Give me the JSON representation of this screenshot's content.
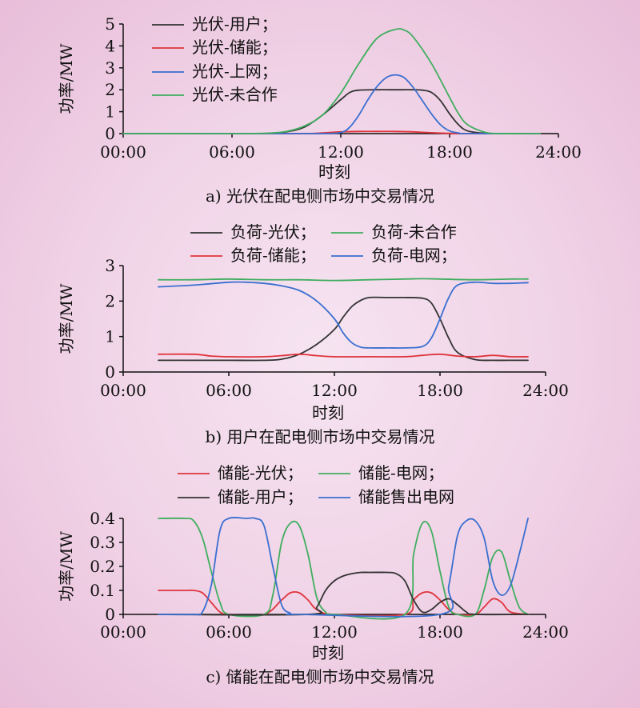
{
  "colors": {
    "black": "#333333",
    "red": "#e0343c",
    "blue": "#3a6fd0",
    "green": "#3fae5e"
  },
  "chart_data": [
    {
      "type": "line",
      "caption": "a) 光伏在配电侧市场中交易情况",
      "xlabel": "时刻",
      "ylabel": "功率/MW",
      "xlim": [
        0,
        24
      ],
      "ylim": [
        0,
        5
      ],
      "xticks": [
        0,
        6,
        12,
        18,
        24
      ],
      "xtick_labels": [
        "00:00",
        "06:00",
        "12:00",
        "18:00",
        "24:00"
      ],
      "yticks": [
        0,
        1,
        2,
        3,
        4,
        5
      ],
      "ytick_labels": [
        "0",
        "1",
        "2",
        "3",
        "4",
        "5"
      ],
      "legend": {
        "placement": "top-left",
        "order": [
          0,
          1,
          2,
          3
        ],
        "columns": 1
      },
      "series": [
        {
          "name": "光伏-用户；",
          "color": "black",
          "x": [
            0,
            6,
            8,
            9,
            10,
            11,
            12,
            12.5,
            13,
            14,
            15,
            16,
            16.5,
            17,
            17.5,
            18,
            18.5,
            19,
            20,
            21,
            22,
            23
          ],
          "y": [
            0,
            0,
            0.01,
            0.08,
            0.3,
            0.85,
            1.55,
            1.88,
            1.98,
            2,
            2,
            2,
            1.98,
            1.88,
            1.5,
            0.9,
            0.4,
            0.12,
            0.01,
            0,
            0,
            0
          ]
        },
        {
          "name": "光伏-储能；",
          "color": "red",
          "x": [
            0,
            8,
            10,
            11,
            12,
            13,
            14,
            15,
            16,
            17,
            18,
            19,
            23
          ],
          "y": [
            0,
            0,
            0,
            0.03,
            0.08,
            0.1,
            0.1,
            0.1,
            0.08,
            0.04,
            0.01,
            0,
            0
          ]
        },
        {
          "name": "光伏-上网；",
          "color": "blue",
          "x": [
            0,
            10,
            11,
            12,
            12.5,
            13,
            13.5,
            14,
            14.5,
            15,
            15.5,
            16,
            16.5,
            17,
            17.5,
            18,
            18.5,
            19,
            23
          ],
          "y": [
            0,
            0,
            0,
            0.05,
            0.3,
            0.85,
            1.55,
            2.15,
            2.55,
            2.68,
            2.55,
            2.1,
            1.5,
            0.9,
            0.4,
            0.12,
            0.03,
            0,
            0
          ]
        },
        {
          "name": "光伏-未合作",
          "color": "green",
          "x": [
            0,
            6,
            8,
            9,
            10,
            11,
            12,
            13,
            14,
            15,
            15.5,
            16,
            17,
            18,
            18.5,
            19,
            20,
            21,
            22,
            23
          ],
          "y": [
            0,
            0,
            0.02,
            0.1,
            0.35,
            0.85,
            1.85,
            3.2,
            4.35,
            4.75,
            4.72,
            4.4,
            3.2,
            1.65,
            0.9,
            0.4,
            0.05,
            0,
            0,
            0
          ]
        }
      ]
    },
    {
      "type": "line",
      "caption": "b) 用户在配电侧市场中交易情况",
      "xlabel": "时刻",
      "ylabel": "功率/MW",
      "xlim": [
        0,
        24
      ],
      "ylim": [
        0,
        3
      ],
      "xticks": [
        0,
        6,
        12,
        18,
        24
      ],
      "xtick_labels": [
        "00:00",
        "06:00",
        "12:00",
        "18:00",
        "24:00"
      ],
      "yticks": [
        0,
        1,
        2,
        3
      ],
      "ytick_labels": [
        "0",
        "1",
        "2",
        "3"
      ],
      "legend": {
        "placement": "top",
        "order": [
          0,
          3,
          1,
          2
        ],
        "columns": 2
      },
      "series": [
        {
          "name": "负荷-光伏；",
          "color": "black",
          "x": [
            2,
            4,
            6,
            8,
            9,
            10,
            11,
            12,
            12.5,
            13,
            13.5,
            14,
            15,
            16,
            17,
            17.5,
            18,
            18.5,
            19,
            20,
            21,
            22,
            23
          ],
          "y": [
            0.33,
            0.33,
            0.33,
            0.33,
            0.36,
            0.5,
            0.78,
            1.2,
            1.55,
            1.85,
            2.02,
            2.1,
            2.1,
            2.1,
            2.08,
            1.95,
            1.5,
            0.95,
            0.55,
            0.35,
            0.33,
            0.33,
            0.33
          ]
        },
        {
          "name": "负荷-储能；",
          "color": "red",
          "x": [
            2,
            4,
            5,
            6,
            8,
            9,
            10,
            11,
            12,
            14,
            16,
            17,
            18,
            19,
            20,
            21,
            22,
            23
          ],
          "y": [
            0.5,
            0.5,
            0.45,
            0.43,
            0.43,
            0.46,
            0.5,
            0.46,
            0.43,
            0.43,
            0.43,
            0.47,
            0.5,
            0.45,
            0.43,
            0.47,
            0.43,
            0.43
          ]
        },
        {
          "name": "负荷-电网；",
          "color": "blue",
          "x": [
            2,
            4,
            6,
            7,
            8,
            9,
            10,
            11,
            12,
            12.5,
            13,
            13.5,
            14,
            15,
            16,
            17,
            17.5,
            18,
            18.5,
            19,
            20,
            21,
            22,
            23
          ],
          "y": [
            2.4,
            2.45,
            2.53,
            2.53,
            2.5,
            2.43,
            2.3,
            2.0,
            1.5,
            1.1,
            0.82,
            0.7,
            0.68,
            0.68,
            0.68,
            0.72,
            0.95,
            1.5,
            2.1,
            2.45,
            2.53,
            2.5,
            2.5,
            2.52
          ]
        },
        {
          "name": "负荷-未合作",
          "color": "green",
          "x": [
            2,
            4,
            6,
            8,
            10,
            12,
            14,
            16,
            17,
            18,
            20,
            22,
            23
          ],
          "y": [
            2.6,
            2.6,
            2.62,
            2.6,
            2.6,
            2.58,
            2.6,
            2.62,
            2.63,
            2.62,
            2.6,
            2.62,
            2.62
          ]
        }
      ]
    },
    {
      "type": "line",
      "caption": "c) 储能在配电侧市场中交易情况",
      "xlabel": "时刻",
      "ylabel": "功率/MW",
      "xlim": [
        0,
        24
      ],
      "ylim": [
        0,
        0.4
      ],
      "xticks": [
        0,
        6,
        12,
        18,
        24
      ],
      "xtick_labels": [
        "00:00",
        "06:00",
        "12:00",
        "18:00",
        "24:00"
      ],
      "yticks": [
        0,
        0.1,
        0.2,
        0.3,
        0.4
      ],
      "ytick_labels": [
        "0",
        "0.1",
        "0.2",
        "0.3",
        "0.4"
      ],
      "legend": {
        "placement": "top",
        "order": [
          0,
          1,
          2,
          3
        ],
        "columns": 2
      },
      "series": [
        {
          "name": "储能-光伏；",
          "color": "red",
          "x": [
            2,
            3.5,
            4,
            4.5,
            5,
            5.5,
            6,
            8,
            9,
            9.5,
            10,
            10.5,
            11,
            12,
            16,
            16.5,
            17,
            17.5,
            18,
            18.5,
            19,
            20,
            20.5,
            21,
            21.5,
            22,
            23
          ],
          "y": [
            0.1,
            0.1,
            0.1,
            0.09,
            0.05,
            0.01,
            0,
            0,
            0.06,
            0.09,
            0.09,
            0.06,
            0.02,
            0,
            0,
            0.06,
            0.09,
            0.09,
            0.06,
            0.02,
            0,
            0,
            0.03,
            0.065,
            0.05,
            0.01,
            0
          ]
        },
        {
          "name": "储能-电网；",
          "color": "green",
          "x": [
            2,
            3.5,
            4,
            4.5,
            5,
            5.5,
            6,
            8,
            8.5,
            9,
            9.5,
            10,
            10.5,
            11,
            11.5,
            12,
            16,
            16.5,
            17,
            17.5,
            18,
            18.5,
            19,
            20,
            20.5,
            21,
            21.5,
            22,
            22.5,
            23
          ],
          "y": [
            0.4,
            0.4,
            0.39,
            0.32,
            0.18,
            0.05,
            0,
            0,
            0.08,
            0.3,
            0.38,
            0.37,
            0.25,
            0.07,
            0.01,
            0,
            0,
            0.25,
            0.38,
            0.35,
            0.18,
            0.03,
            0,
            0,
            0.1,
            0.24,
            0.26,
            0.14,
            0.03,
            0
          ]
        },
        {
          "name": "储能-用户；",
          "color": "black",
          "x": [
            2,
            10.5,
            11,
            11.5,
            12,
            12.5,
            13,
            13.5,
            14,
            15,
            15.5,
            16,
            16.5,
            17,
            17.5,
            18,
            18.5,
            19,
            19.5,
            20,
            23
          ],
          "y": [
            0,
            0,
            0.03,
            0.1,
            0.14,
            0.16,
            0.17,
            0.175,
            0.175,
            0.175,
            0.17,
            0.14,
            0.06,
            0.01,
            0.02,
            0.05,
            0.065,
            0.04,
            0.01,
            0,
            0
          ]
        },
        {
          "name": "储能售出电网",
          "color": "blue",
          "x": [
            2,
            4,
            4.5,
            5,
            5.5,
            6,
            7,
            7.5,
            8,
            8.5,
            9,
            9.5,
            10,
            18,
            18.5,
            19,
            19.5,
            20,
            20.5,
            21,
            21.5,
            22,
            22.5,
            23
          ],
          "y": [
            0,
            0,
            0.01,
            0.12,
            0.35,
            0.4,
            0.4,
            0.4,
            0.37,
            0.2,
            0.04,
            0.005,
            0,
            0,
            0.12,
            0.33,
            0.39,
            0.39,
            0.32,
            0.14,
            0.08,
            0.12,
            0.25,
            0.4
          ]
        }
      ]
    }
  ]
}
